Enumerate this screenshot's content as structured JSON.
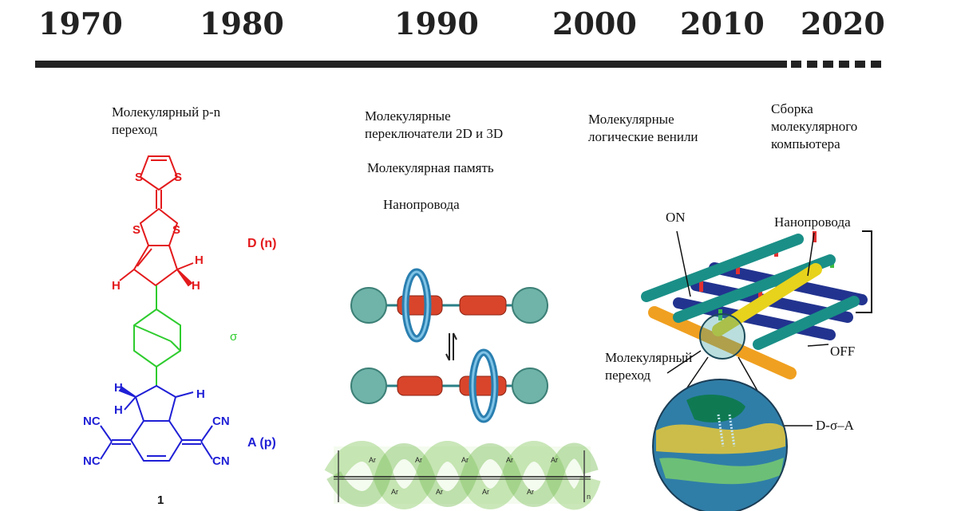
{
  "timeline": {
    "years": [
      "1970",
      "1980",
      "1990",
      "2000",
      "2010",
      "2020"
    ]
  },
  "milestones": {
    "pn_junction": "Молекулярный p-n\nпереход",
    "switches": "Молекулярные\nпереключатели 2D и 3D",
    "memory": "Молекулярная память",
    "nanowires_1990": "Нанопровода",
    "logic_gates": "Молекулярные\nлогические венили",
    "computer": "Сборка\nмолекулярного\nкомпьютера"
  },
  "molecule": {
    "donor_label": "D (n)",
    "sigma_label": "σ",
    "acceptor_label": "A (p)",
    "compound_number": "1",
    "atoms": {
      "s": "S",
      "h": "H",
      "cn": "CN",
      "nc": "NC"
    }
  },
  "crossbar": {
    "on_label": "ON",
    "off_label": "OFF",
    "nanowires_label": "Нанопровода",
    "junction_label": "Молекулярный\nпереход",
    "dsa_label": "D-σ–A"
  },
  "polymer": {
    "ar": "Ar",
    "n": "n"
  },
  "colors": {
    "donor": "#e31a1c",
    "bridge": "#2ecc2e",
    "acceptor": "#1f1fd6",
    "axis": "#222222",
    "teal_wire": "#1a8f87",
    "blue_wire": "#22338f",
    "yellow_wire": "#e7d21c",
    "orange_wire": "#f0a020",
    "ring": "#2a7fb0",
    "cylinder": "#d9452b",
    "ball": "#6fb3a9"
  }
}
